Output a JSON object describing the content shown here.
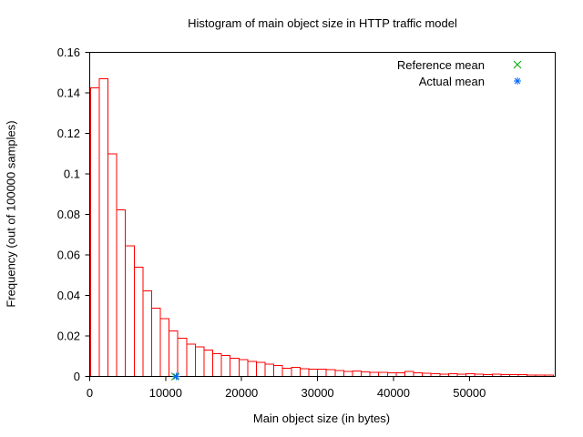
{
  "legend": {
    "items": [
      {
        "label": "Reference mean",
        "marker": "cross",
        "color": "#00a500"
      },
      {
        "label": "Actual mean",
        "marker": "asterisk",
        "color": "#0068ff"
      }
    ],
    "position": "top-right-inside"
  },
  "chart_data": {
    "type": "bar",
    "subtype": "histogram",
    "title": "Histogram of main object size in HTTP traffic model",
    "xlabel": "Main object size (in bytes)",
    "ylabel": "Frequency (out of 100000 samples)",
    "xlim": [
      0,
      61300
    ],
    "ylim": [
      0,
      0.16
    ],
    "grid": false,
    "bar_color": "#ff0000",
    "axis_color": "#000000",
    "text_color": "#000000",
    "x_ticks": [
      {
        "value": 0,
        "label": "0"
      },
      {
        "value": 10000,
        "label": "10000"
      },
      {
        "value": 20000,
        "label": "20000"
      },
      {
        "value": 30000,
        "label": "30000"
      },
      {
        "value": 40000,
        "label": "40000"
      },
      {
        "value": 50000,
        "label": "50000"
      }
    ],
    "y_ticks": [
      {
        "value": 0,
        "label": "0"
      },
      {
        "value": 0.02,
        "label": "0.02"
      },
      {
        "value": 0.04,
        "label": "0.04"
      },
      {
        "value": 0.06,
        "label": "0.06"
      },
      {
        "value": 0.08,
        "label": "0.08"
      },
      {
        "value": 0.1,
        "label": "0.1"
      },
      {
        "value": 0.12,
        "label": "0.12"
      },
      {
        "value": 0.14,
        "label": "0.14"
      },
      {
        "value": 0.16,
        "label": "0.16"
      }
    ],
    "bin_start": 100,
    "bin_width": 1150,
    "bin_unit": "bytes",
    "frequencies": [
      0.1425,
      0.147,
      0.11,
      0.0823,
      0.0646,
      0.054,
      0.0423,
      0.0336,
      0.0285,
      0.0224,
      0.0189,
      0.016,
      0.0146,
      0.0131,
      0.0113,
      0.0104,
      0.009,
      0.0084,
      0.0074,
      0.0069,
      0.006,
      0.0053,
      0.0041,
      0.0046,
      0.0039,
      0.0037,
      0.0035,
      0.0033,
      0.0029,
      0.0024,
      0.0027,
      0.0023,
      0.0021,
      0.002,
      0.0019,
      0.0018,
      0.0024,
      0.0018,
      0.0015,
      0.0013,
      0.0012,
      0.0014,
      0.0012,
      0.0013,
      0.0011,
      0.001,
      0.0012,
      0.0009,
      0.0008,
      0.0008,
      0.0007,
      0.0007,
      0.0006
    ],
    "markers": [
      {
        "label": "Reference mean",
        "x": 11250,
        "y": 0,
        "marker": "cross",
        "color": "#00a500"
      },
      {
        "label": "Actual mean",
        "x": 11400,
        "y": 0,
        "marker": "asterisk",
        "color": "#0068ff"
      }
    ]
  }
}
